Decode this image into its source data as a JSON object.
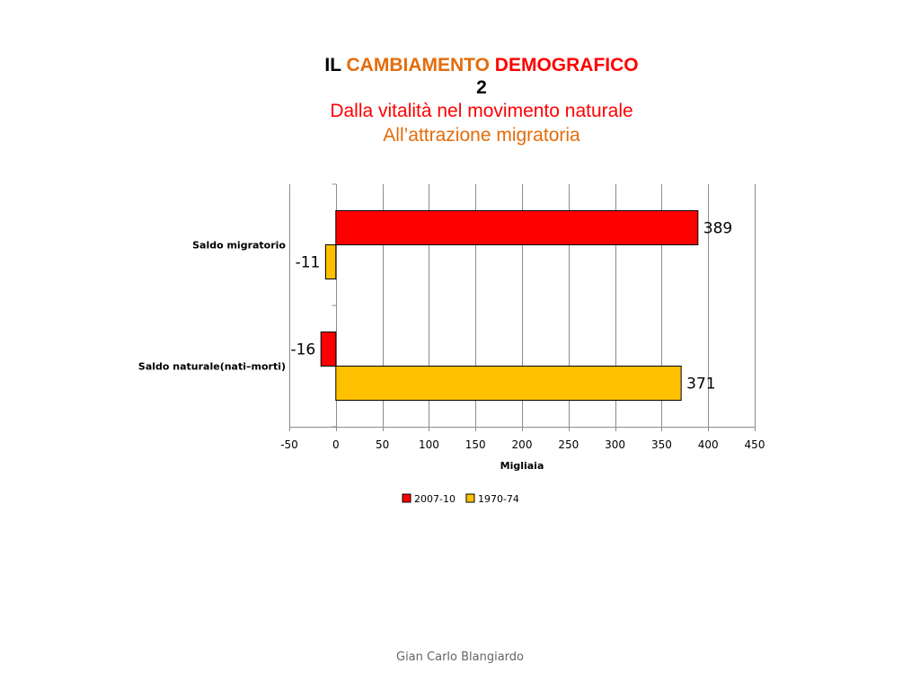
{
  "title": {
    "prefix": "IL",
    "word1": "CAMBIAMENTO",
    "word2": "DEMOGRAFICO",
    "number": "2",
    "subtitle1": "Dalla vitalità nel movimento naturale",
    "subtitle2": "All’attrazione migratoria",
    "colors": {
      "prefix": "#000000",
      "word1": "#E46C0A",
      "word2": "#FF0000",
      "number": "#000000",
      "subtitle1": "#FF0000",
      "subtitle2": "#E46C0A"
    }
  },
  "chart_data": {
    "type": "bar",
    "orientation": "horizontal",
    "categories": [
      "Saldo migratorio",
      "Saldo naturale(nati–morti)"
    ],
    "series": [
      {
        "name": "2007-10",
        "color": "#FF0000",
        "values": [
          389,
          -16
        ]
      },
      {
        "name": "1970-74",
        "color": "#FFC000",
        "values": [
          -11,
          371
        ]
      }
    ],
    "xlabel": "Migliaia",
    "ylabel": "",
    "xlim": [
      -50,
      450
    ],
    "xticks": [
      -50,
      0,
      50,
      100,
      150,
      200,
      250,
      300,
      350,
      400,
      450
    ],
    "grid": true,
    "legend_position": "bottom"
  },
  "footer": "Gian Carlo Blangiardo"
}
